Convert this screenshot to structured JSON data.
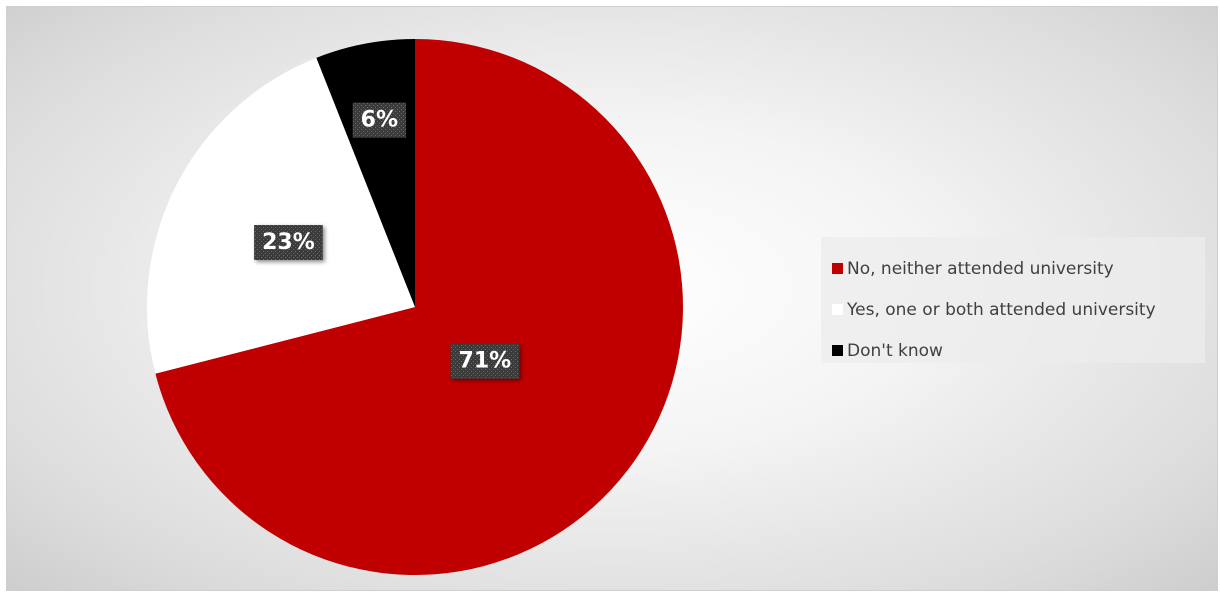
{
  "chart_data": {
    "type": "pie",
    "slices": [
      {
        "label": "No, neither attended university",
        "value": 71,
        "display": "71%",
        "color": "#c00000"
      },
      {
        "label": "Yes, one or both attended university",
        "value": 23,
        "display": "23%",
        "color": "#ffffff"
      },
      {
        "label": "Don't know",
        "value": 6,
        "display": "6%",
        "color": "#000000"
      }
    ],
    "start_angle": "12 o'clock",
    "direction": "clockwise",
    "legend_position": "right"
  }
}
